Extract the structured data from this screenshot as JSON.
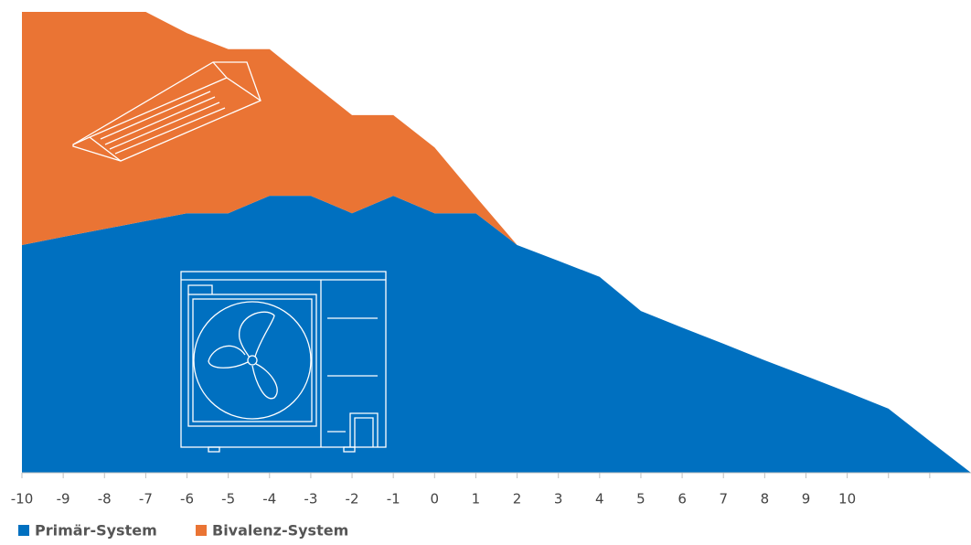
{
  "chart_data": {
    "type": "stacked-area",
    "categories": [
      -10,
      -9,
      -8,
      -7,
      -6,
      -5,
      -4,
      -3,
      -2,
      -1,
      0,
      1,
      2,
      3,
      4,
      5,
      6,
      7,
      8,
      9,
      10,
      null,
      null,
      null
    ],
    "series": [
      {
        "name": "Primär-System",
        "color": "#0070c0",
        "values": [
          4.94,
          5.12,
          5.29,
          5.46,
          5.63,
          5.63,
          6.01,
          6.01,
          5.63,
          6.01,
          5.63,
          5.63,
          4.94,
          4.6,
          4.25,
          3.51,
          3.15,
          2.8,
          2.44,
          2.1,
          1.75,
          1.39,
          0.69,
          0
        ]
      },
      {
        "name": "Bivalenz-System",
        "color": "#ea7434",
        "values": [
          5.06,
          4.88,
          4.71,
          4.54,
          3.91,
          3.56,
          3.18,
          2.46,
          2.13,
          1.75,
          1.43,
          0.36,
          0,
          0,
          0,
          0,
          0,
          0,
          0,
          0,
          0,
          0,
          0,
          0
        ]
      }
    ],
    "ylim": [
      0,
      10
    ]
  }
}
